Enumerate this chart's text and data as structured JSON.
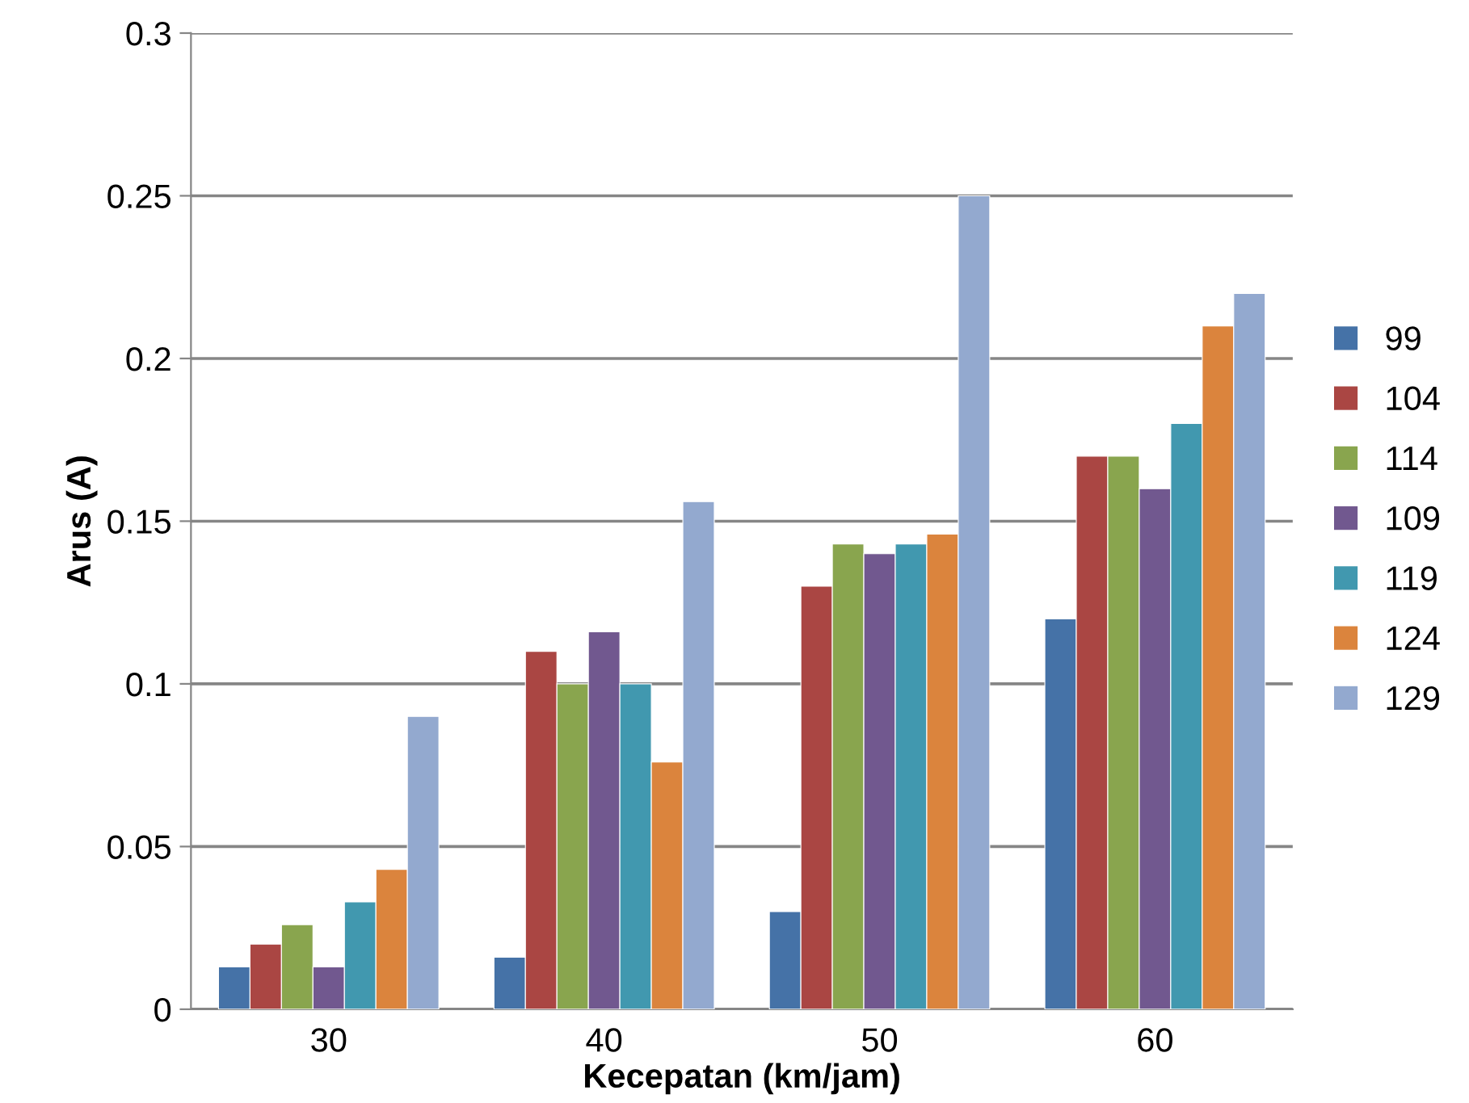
{
  "chart_data": {
    "type": "bar",
    "xlabel": "Kecepatan (km/jam)",
    "ylabel": "Arus (A)",
    "categories": [
      "30",
      "40",
      "50",
      "60"
    ],
    "series": [
      {
        "name": "99",
        "color": "#4572a7",
        "values": [
          0.013,
          0.016,
          0.03,
          0.12
        ]
      },
      {
        "name": "104",
        "color": "#aa4643",
        "values": [
          0.02,
          0.11,
          0.13,
          0.17
        ]
      },
      {
        "name": "114",
        "color": "#89a54e",
        "values": [
          0.026,
          0.1,
          0.143,
          0.17
        ]
      },
      {
        "name": "109",
        "color": "#71588f",
        "values": [
          0.013,
          0.116,
          0.14,
          0.16
        ]
      },
      {
        "name": "119",
        "color": "#4198af",
        "values": [
          0.033,
          0.1,
          0.143,
          0.18
        ]
      },
      {
        "name": "124",
        "color": "#db843d",
        "values": [
          0.043,
          0.076,
          0.146,
          0.21
        ]
      },
      {
        "name": "129",
        "color": "#93a9cf",
        "values": [
          0.09,
          0.156,
          0.25,
          0.22
        ]
      }
    ],
    "ylim": [
      0,
      0.3
    ],
    "yticks": [
      0,
      0.05,
      0.1,
      0.15,
      0.2,
      0.25,
      0.3
    ],
    "grid": "y",
    "legend": "right"
  }
}
